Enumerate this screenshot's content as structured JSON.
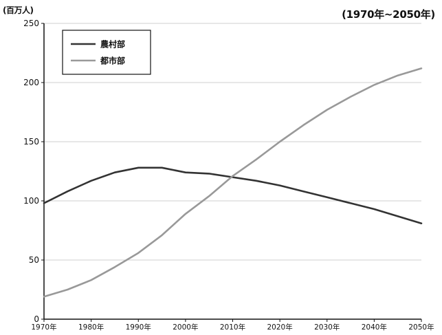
{
  "header": {
    "unit_label": "(百万人)",
    "range_label": "(1970年~2050年)"
  },
  "colors": {
    "rural": "#333333",
    "urban": "#999999",
    "grid": "#cfcfcf",
    "axis": "#111111"
  },
  "chart_data": {
    "type": "line",
    "title": "",
    "xlabel": "",
    "ylabel": "(百万人)",
    "ylim": [
      0,
      250
    ],
    "xlim": [
      1970,
      2050
    ],
    "yticks": [
      0,
      50,
      100,
      150,
      200,
      250
    ],
    "xticks": [
      1970,
      1980,
      1990,
      2000,
      2010,
      2020,
      2030,
      2040,
      2050
    ],
    "xtick_labels": [
      "1970年",
      "1980年",
      "1990年",
      "2000年",
      "2010年",
      "2020年",
      "2030年",
      "2040年",
      "2050年"
    ],
    "grid": "horizontal",
    "legend": "top-left",
    "x": [
      1970,
      1975,
      1980,
      1985,
      1990,
      1995,
      2000,
      2005,
      2010,
      2015,
      2020,
      2025,
      2030,
      2035,
      2040,
      2045,
      2050
    ],
    "series": [
      {
        "name": "農村部",
        "color_key": "rural",
        "values": [
          98,
          108,
          117,
          124,
          128,
          128,
          124,
          123,
          120,
          117,
          113,
          108,
          103,
          98,
          93,
          87,
          81
        ]
      },
      {
        "name": "都市部",
        "color_key": "urban",
        "values": [
          19,
          25,
          33,
          44,
          56,
          71,
          89,
          104,
          121,
          135,
          150,
          164,
          177,
          188,
          198,
          206,
          212
        ]
      }
    ]
  }
}
